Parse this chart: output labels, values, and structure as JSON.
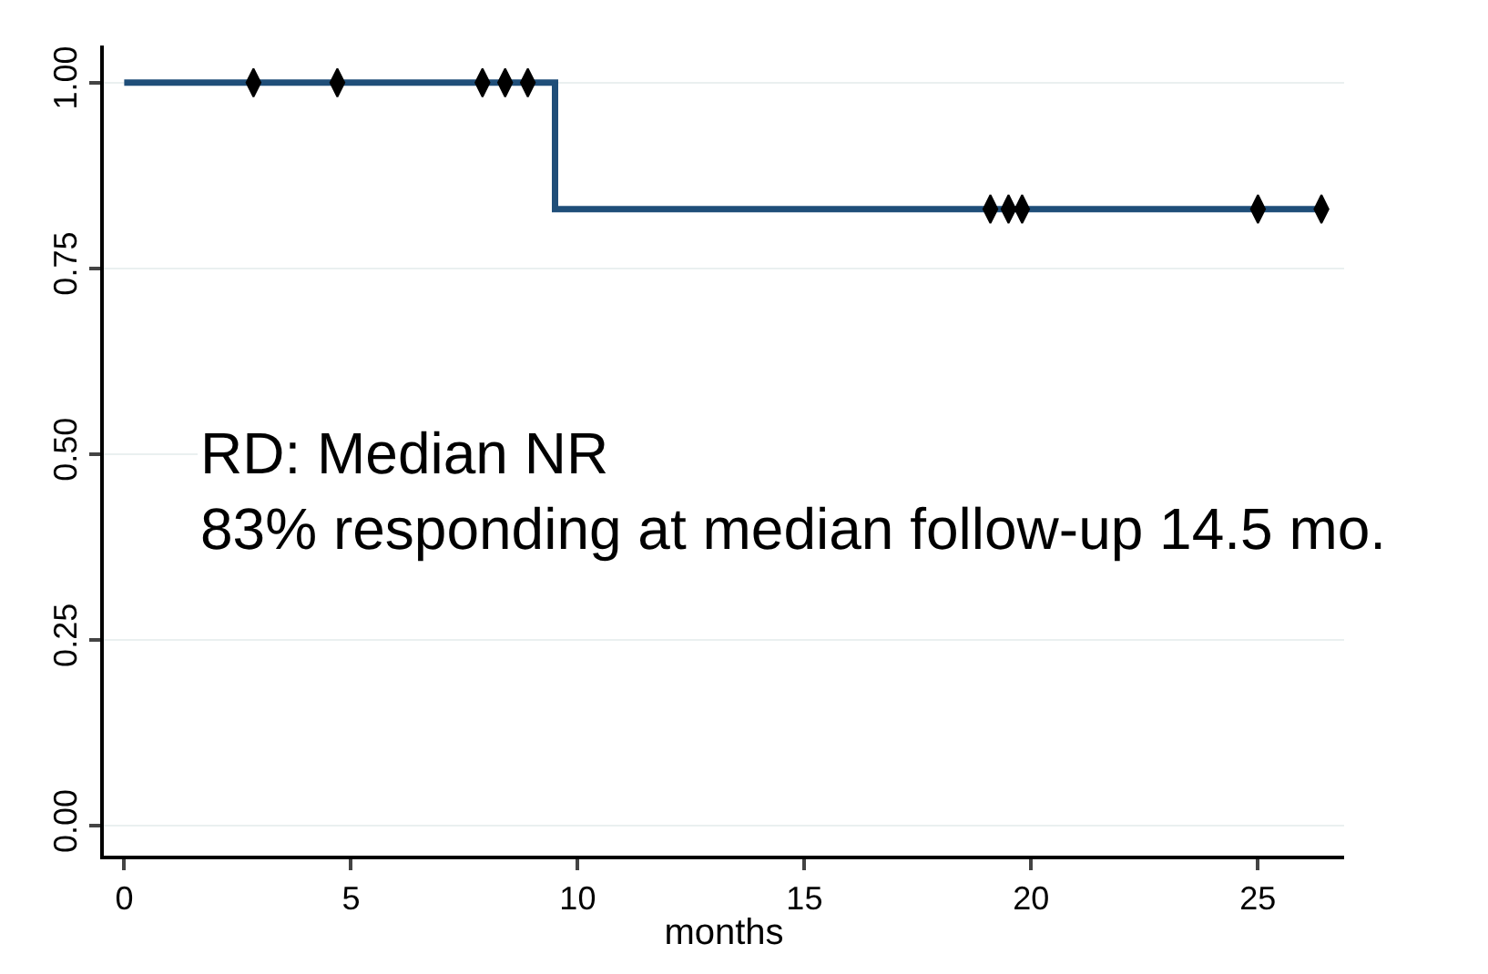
{
  "chart_data": {
    "type": "step",
    "xlabel": "months",
    "series": [
      {
        "color": "#1f4e79",
        "x": [
          0,
          9.5,
          26.4
        ],
        "values": [
          1.0,
          0.83,
          0.83
        ]
      },
      {
        "type": "scatter",
        "marker": "diamond",
        "color": "#000000",
        "x": [
          2.85,
          4.7,
          7.9,
          8.4,
          8.9,
          19.1,
          19.5,
          19.8,
          25.0,
          26.4
        ],
        "values": [
          1.0,
          1.0,
          1.0,
          1.0,
          1.0,
          0.83,
          0.83,
          0.83,
          0.83,
          0.83
        ]
      }
    ],
    "xlim": [
      -0.45,
      26.9
    ],
    "xticks": [
      0,
      5,
      10,
      15,
      20,
      25
    ],
    "ylim": [
      -0.04,
      1.05
    ],
    "yticks": [
      {
        "value": 0,
        "label": "0.00"
      },
      {
        "value": 0.25,
        "label": "0.25"
      },
      {
        "value": 0.5,
        "label": "0.50"
      },
      {
        "value": 0.75,
        "label": "0.75"
      },
      {
        "value": 1,
        "label": "1.00"
      }
    ],
    "grid": "y",
    "annotations": [
      "RD: Median NR\n83% responding at median follow-up 14.5 mo."
    ]
  }
}
